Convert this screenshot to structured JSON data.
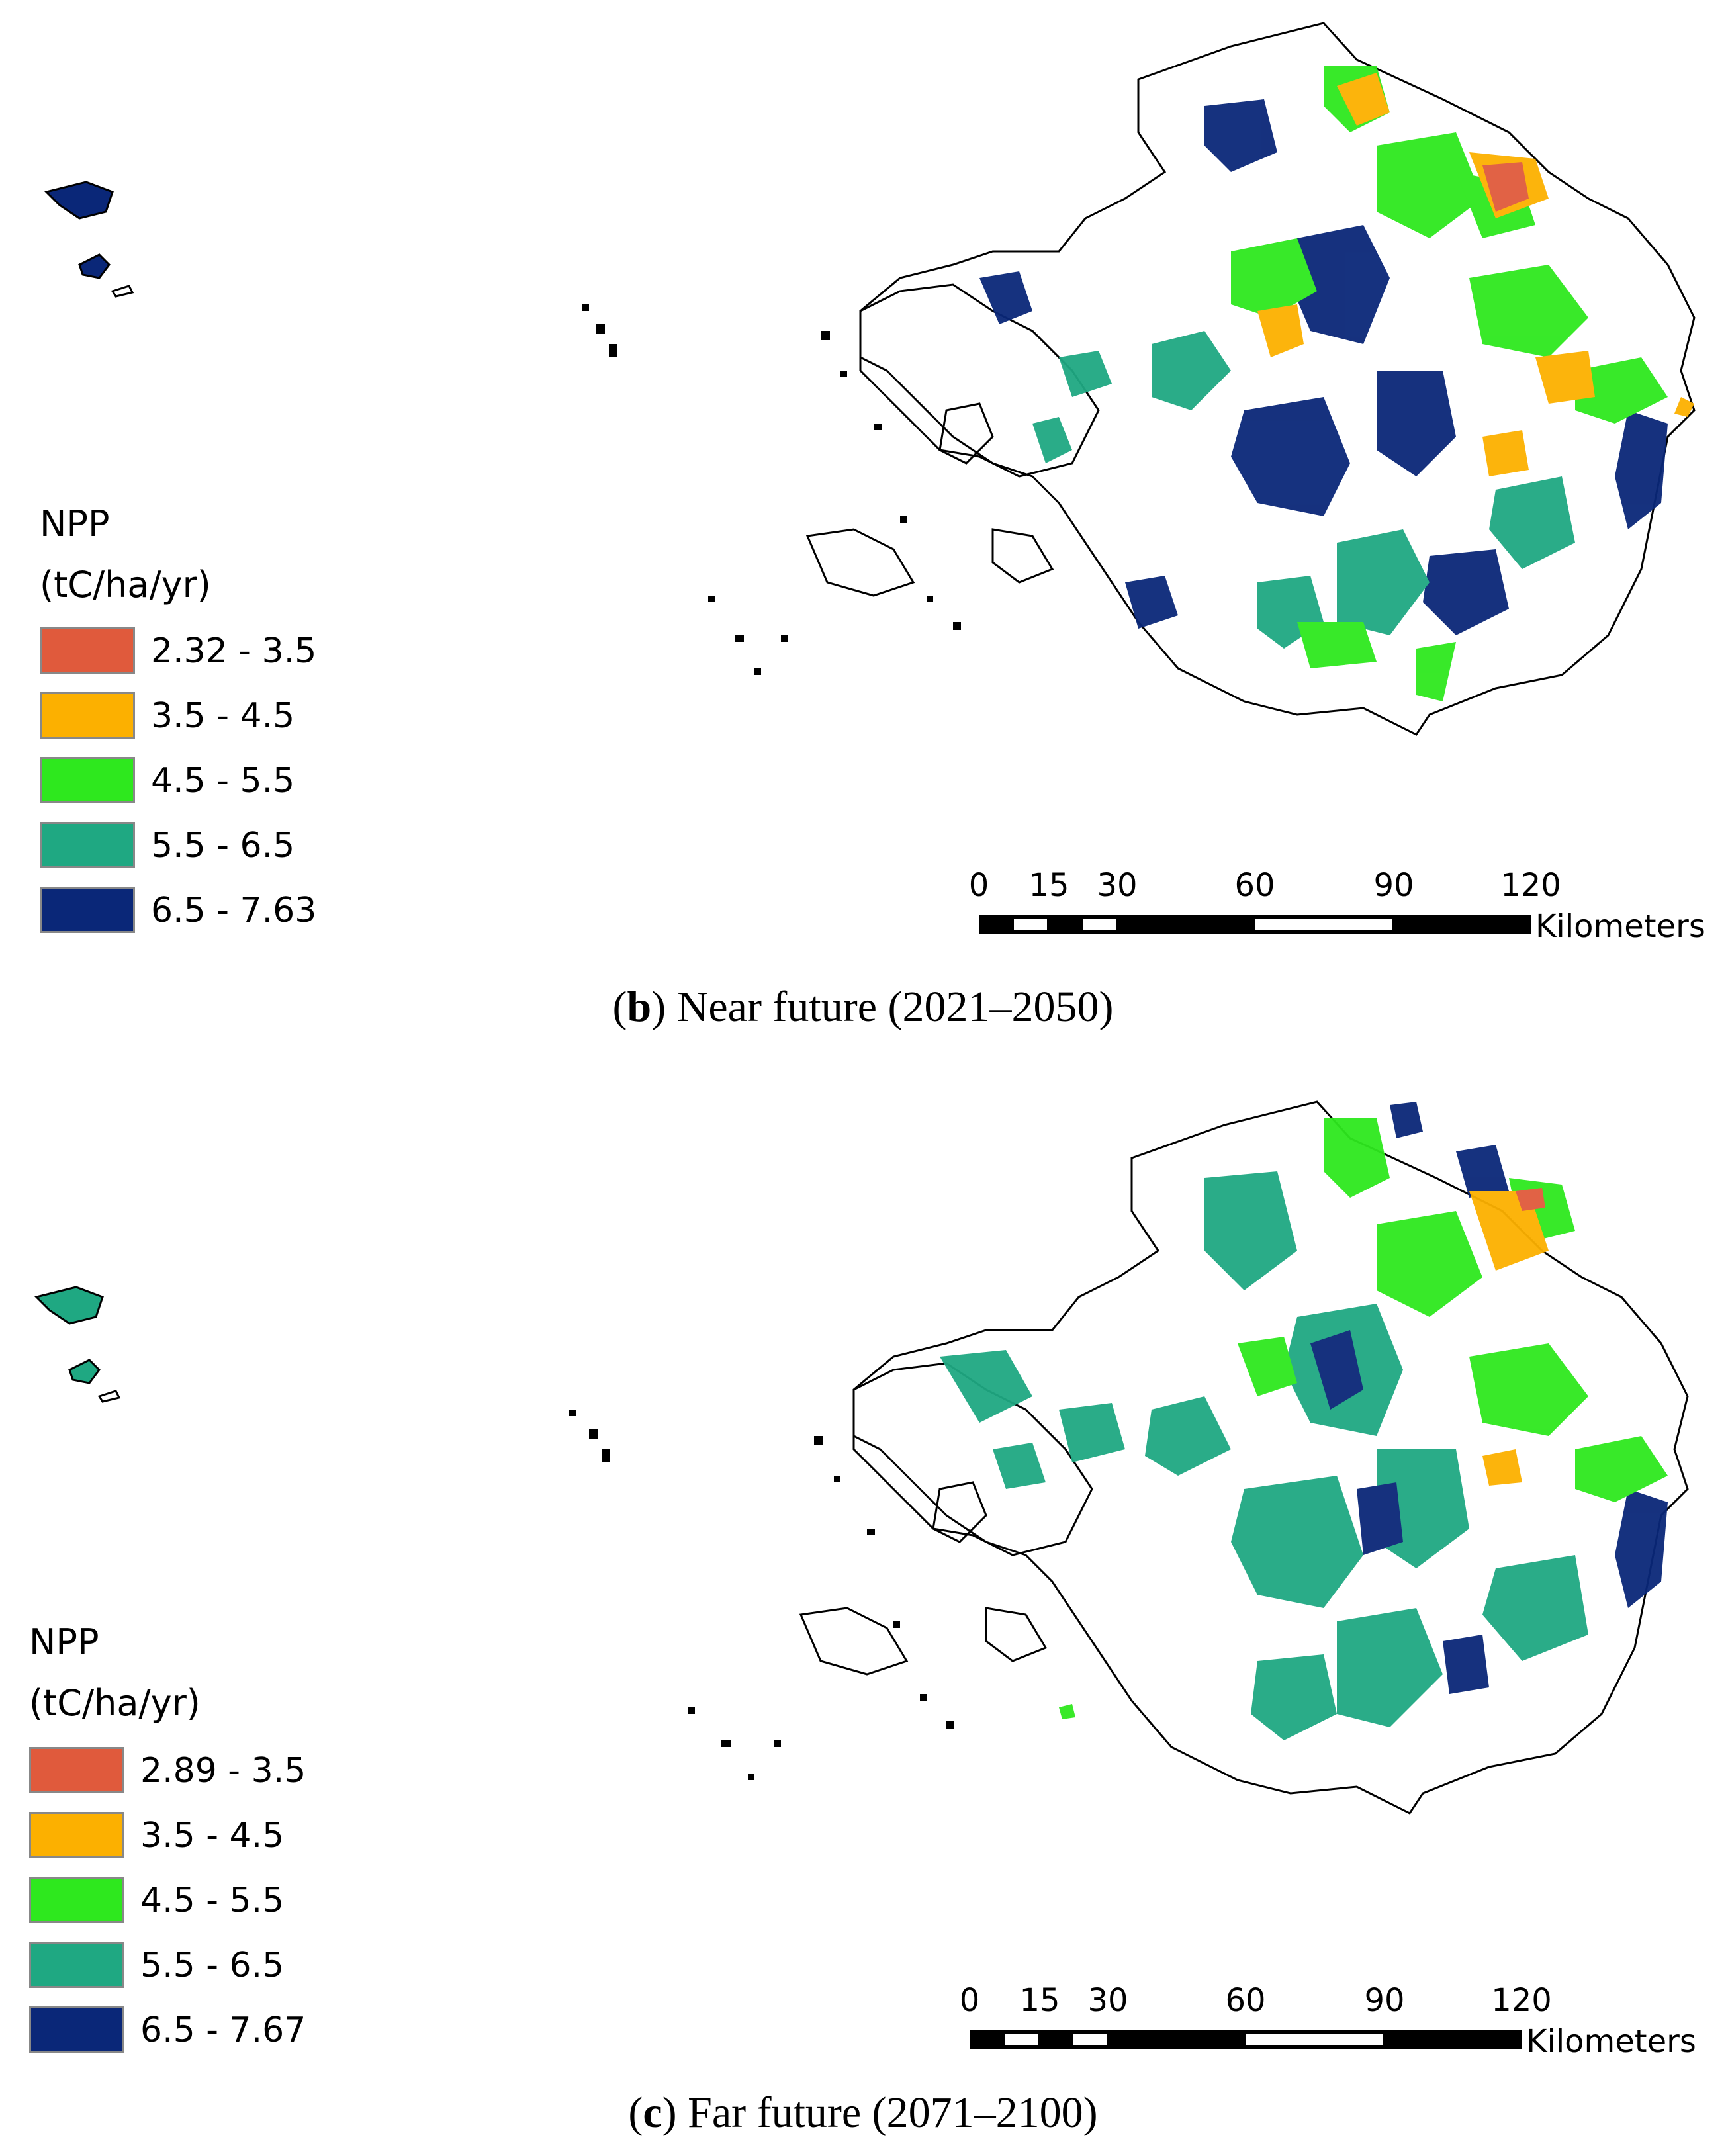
{
  "panels": [
    {
      "caption_letter": "b",
      "caption_text": "Near future (2021–2050)",
      "legend_title_line1": "NPP",
      "legend_title_line2": "(tC/ha/yr)",
      "legend": [
        {
          "label": "2.32 - 3.5",
          "color": "#e05a3c"
        },
        {
          "label": "3.5 - 4.5",
          "color": "#fcb000"
        },
        {
          "label": "4.5 - 5.5",
          "color": "#2ee81e"
        },
        {
          "label": "5.5 - 6.5",
          "color": "#1fa882"
        },
        {
          "label": "6.5 - 7.63",
          "color": "#0a2778"
        }
      ],
      "scale_ticks": [
        "0",
        "15",
        "30",
        "60",
        "90",
        "120"
      ],
      "scale_unit": "Kilometers"
    },
    {
      "caption_letter": "c",
      "caption_text": "Far future (2071–2100)",
      "legend_title_line1": "NPP",
      "legend_title_line2": "(tC/ha/yr)",
      "legend": [
        {
          "label": "2.89 - 3.5",
          "color": "#e05a3c"
        },
        {
          "label": "3.5 - 4.5",
          "color": "#fcb000"
        },
        {
          "label": "4.5 - 5.5",
          "color": "#2ee81e"
        },
        {
          "label": "5.5 - 6.5",
          "color": "#1fa882"
        },
        {
          "label": "6.5 - 7.67",
          "color": "#0a2778"
        }
      ],
      "scale_ticks": [
        "0",
        "15",
        "30",
        "60",
        "90",
        "120"
      ],
      "scale_unit": "Kilometers"
    }
  ]
}
